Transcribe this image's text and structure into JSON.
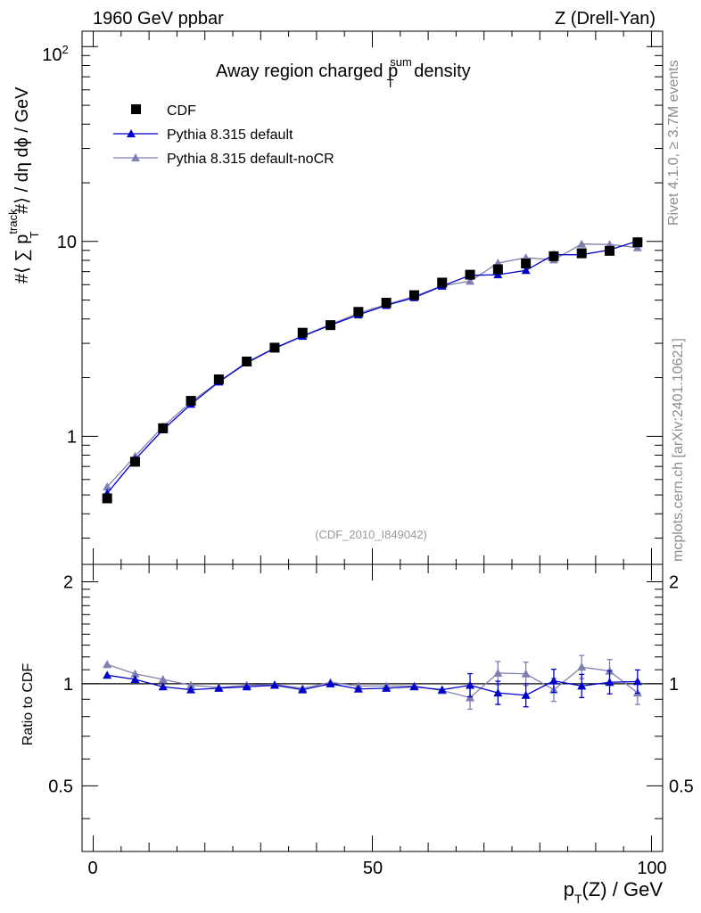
{
  "header": {
    "left": "1960 GeV ppbar",
    "right": "Z (Drell-Yan)"
  },
  "side_labels": {
    "rivet": "Rivet 4.1.0, ≥ 3.7M events",
    "mcplots": "mcplots.cern.ch [arXiv:2401.10621]"
  },
  "chart_data": {
    "type": "line",
    "title": {
      "main": "Away region charged p",
      "sup": "sum",
      "sub": "T",
      "tail": " density"
    },
    "analysis_tag": "(CDF_2010_I849042)",
    "xlabel": {
      "p": "p",
      "sub": "T",
      "rest": "(Z) / GeV"
    },
    "ylabel": {
      "prefix": "#⟨ ∑ p",
      "sup": "track",
      "sub": "T",
      "suffix": " #⟩ / dη dϕ / GeV"
    },
    "ratio_ylabel": "Ratio to CDF",
    "xlim": [
      -2,
      102
    ],
    "ylim": [
      0.22,
      120
    ],
    "yscale": "log",
    "ratio_ylim": [
      0.32,
      2.25
    ],
    "ratio_yscale": "log",
    "x_ticks": [
      0,
      50,
      100
    ],
    "x_tick_labels": [
      "0",
      "50",
      "100"
    ],
    "y_tick_labels": {
      "t1": "1",
      "t10": "10",
      "t100_base": "10",
      "t100_exp": "2"
    },
    "ratio_tick_labels": {
      "t05": "0.5",
      "t1": "1",
      "t2": "2"
    },
    "x": [
      2.5,
      7.5,
      12.5,
      17.5,
      22.5,
      27.5,
      32.5,
      37.5,
      42.5,
      47.5,
      52.5,
      57.5,
      62.5,
      67.5,
      72.5,
      77.5,
      82.5,
      87.5,
      92.5,
      97.5
    ],
    "series": [
      {
        "name": "CDF",
        "color": "#000000",
        "marker": "square",
        "values": [
          0.48,
          0.74,
          1.1,
          1.52,
          1.96,
          2.42,
          2.85,
          3.4,
          3.72,
          4.35,
          4.85,
          5.3,
          6.15,
          6.75,
          7.2,
          7.7,
          8.4,
          8.7,
          8.95,
          9.9
        ]
      },
      {
        "name": "Pythia 8.315 default",
        "color": "#0000cc",
        "marker": "triangle",
        "values": [
          0.51,
          0.76,
          1.08,
          1.46,
          1.9,
          2.38,
          2.83,
          3.26,
          3.72,
          4.2,
          4.7,
          5.15,
          5.9,
          6.7,
          6.75,
          7.1,
          8.55,
          8.55,
          9.05,
          10.05
        ],
        "ratio": [
          1.06,
          1.03,
          0.98,
          0.96,
          0.97,
          0.98,
          0.99,
          0.96,
          1.0,
          0.965,
          0.97,
          0.98,
          0.96,
          0.99,
          0.94,
          0.925,
          1.02,
          0.985,
          1.01,
          1.015
        ]
      },
      {
        "name": "Pythia 8.315 default-noCR",
        "color": "#8080b0",
        "marker": "triangle",
        "values": [
          0.55,
          0.79,
          1.12,
          1.5,
          1.91,
          2.4,
          2.84,
          3.28,
          3.75,
          4.28,
          4.75,
          5.22,
          5.92,
          6.25,
          7.75,
          8.25,
          8.05,
          9.7,
          9.65,
          9.3
        ],
        "ratio": [
          1.14,
          1.07,
          1.03,
          0.99,
          0.975,
          0.99,
          0.995,
          0.97,
          1.01,
          0.985,
          0.985,
          0.985,
          0.955,
          0.91,
          1.075,
          1.07,
          0.96,
          1.12,
          1.09,
          0.94
        ]
      }
    ],
    "ratio_reference": 1
  }
}
